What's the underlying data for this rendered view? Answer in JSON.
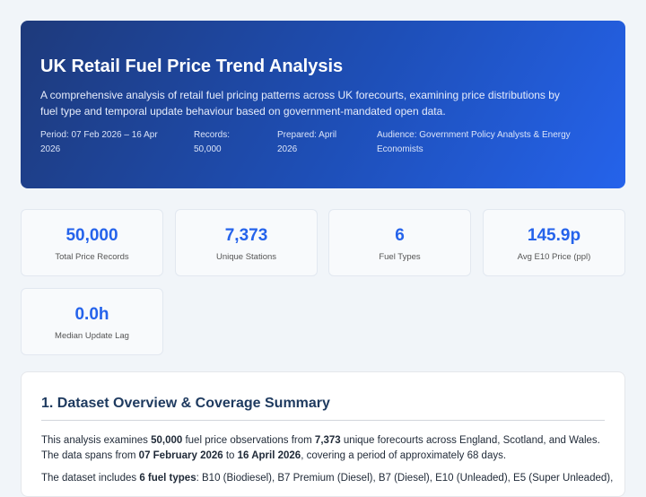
{
  "header": {
    "title": "UK Retail Fuel Price Trend Analysis",
    "description": "A comprehensive analysis of retail fuel pricing patterns across UK forecourts, examining price distributions by fuel type and temporal update behaviour based on government-mandated open data.",
    "meta": [
      "Period: 07 Feb 2026 – 16 Apr 2026",
      "Records: 50,000",
      "Prepared: April 2026",
      "Audience: Government Policy Analysts & Energy Economists"
    ]
  },
  "kpis": [
    {
      "value": "50,000",
      "label": "Total Price Records"
    },
    {
      "value": "7,373",
      "label": "Unique Stations"
    },
    {
      "value": "6",
      "label": "Fuel Types"
    },
    {
      "value": "145.9p",
      "label": "Avg E10 Price (ppl)"
    },
    {
      "value": "0.0h",
      "label": "Median Update Lag"
    }
  ],
  "section": {
    "heading": "1. Dataset Overview & Coverage Summary",
    "paragraphs": [
      [
        {
          "text": "This analysis examines ",
          "bold": false
        },
        {
          "text": "50,000",
          "bold": true
        },
        {
          "text": " fuel price observations from ",
          "bold": false
        },
        {
          "text": "7,373",
          "bold": true
        },
        {
          "text": " unique forecourts across England, Scotland, and Wales. The data spans from ",
          "bold": false
        },
        {
          "text": "07 February 2026",
          "bold": true
        },
        {
          "text": " to ",
          "bold": false
        },
        {
          "text": "16 April 2026",
          "bold": true
        },
        {
          "text": ", covering a period of approximately 68 days.",
          "bold": false
        }
      ],
      [
        {
          "text": "The dataset includes ",
          "bold": false
        },
        {
          "text": "6 fuel types",
          "bold": true
        },
        {
          "text": ": B10 (Biodiesel), B7 Premium (Diesel), B7 (Diesel), E10 (Unleaded), E5 (Super Unleaded),",
          "bold": false
        }
      ]
    ]
  }
}
